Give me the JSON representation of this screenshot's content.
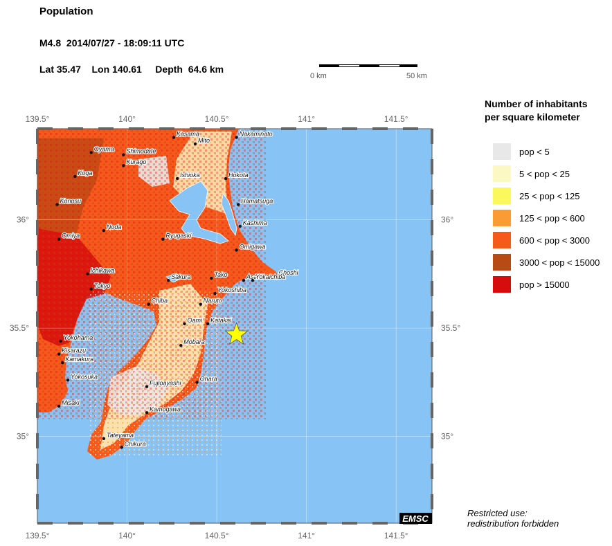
{
  "header": {
    "title": "Population",
    "event": "M4.8  2014/07/27 - 18:09:11 UTC",
    "location": "Lat 35.47    Lon 140.61     Depth  64.6 km"
  },
  "scalebar": {
    "start_label": "0 km",
    "end_label": "50 km"
  },
  "map": {
    "lon_ticks": [
      "139.5°",
      "140°",
      "140.5°",
      "141°",
      "141.5°"
    ],
    "lat_ticks": [
      "36°",
      "35.5°",
      "35°"
    ],
    "logo": "EMSC",
    "epicenter": {
      "lat": 35.47,
      "lon": 140.61
    },
    "colors": {
      "sea": "#87c4f5",
      "lake": "#87c4f5",
      "pop_lt5": "#e8e8e8",
      "pop_5_25": "#fbf8c4",
      "pop_25_125": "#fbf85e",
      "pop_125_600": "#fb9b33",
      "pop_600_3000": "#f55a1a",
      "pop_3000_15000": "#b84a13",
      "pop_gt15000": "#d60d0d",
      "epicenter_star": "#ffff00"
    },
    "cities": [
      {
        "name": "Kasama",
        "lon": 140.26,
        "lat": 36.38
      },
      {
        "name": "Nakaminato",
        "lon": 140.61,
        "lat": 36.38
      },
      {
        "name": "Mito",
        "lon": 140.38,
        "lat": 36.35
      },
      {
        "name": "Oyama",
        "lon": 139.8,
        "lat": 36.31
      },
      {
        "name": "Shimodate",
        "lon": 139.98,
        "lat": 36.3
      },
      {
        "name": "Kurago",
        "lon": 139.98,
        "lat": 36.25
      },
      {
        "name": "Koga",
        "lon": 139.71,
        "lat": 36.2
      },
      {
        "name": "Ishioka",
        "lon": 140.28,
        "lat": 36.19
      },
      {
        "name": "Hokota",
        "lon": 140.55,
        "lat": 36.19
      },
      {
        "name": "Konosu",
        "lon": 139.61,
        "lat": 36.07
      },
      {
        "name": "Hamatsuga",
        "lon": 140.62,
        "lat": 36.07
      },
      {
        "name": "Noda",
        "lon": 139.87,
        "lat": 35.95
      },
      {
        "name": "Kashima",
        "lon": 140.63,
        "lat": 35.97
      },
      {
        "name": "Omiya",
        "lon": 139.62,
        "lat": 35.91
      },
      {
        "name": "Ryugaski",
        "lon": 140.2,
        "lat": 35.91
      },
      {
        "name": "Omigawa",
        "lon": 140.61,
        "lat": 35.86
      },
      {
        "name": "Ichikawa",
        "lon": 139.78,
        "lat": 35.75
      },
      {
        "name": "Choshi",
        "lon": 140.83,
        "lat": 35.74
      },
      {
        "name": "Tako",
        "lon": 140.47,
        "lat": 35.73
      },
      {
        "name": "Asahi",
        "lon": 140.65,
        "lat": 35.72
      },
      {
        "name": "Yokaichiba",
        "lon": 140.7,
        "lat": 35.72
      },
      {
        "name": "Sakura",
        "lon": 140.23,
        "lat": 35.72
      },
      {
        "name": "Tokyo",
        "lon": 139.8,
        "lat": 35.68
      },
      {
        "name": "Yokoshiba",
        "lon": 140.49,
        "lat": 35.66
      },
      {
        "name": "Chiba",
        "lon": 140.12,
        "lat": 35.61
      },
      {
        "name": "Naruto",
        "lon": 140.41,
        "lat": 35.61
      },
      {
        "name": "Oami",
        "lon": 140.32,
        "lat": 35.52
      },
      {
        "name": "Katakai",
        "lon": 140.45,
        "lat": 35.52
      },
      {
        "name": "Yokohama",
        "lon": 139.63,
        "lat": 35.44
      },
      {
        "name": "Mobara",
        "lon": 140.3,
        "lat": 35.42
      },
      {
        "name": "Kisarazu",
        "lon": 139.62,
        "lat": 35.38
      },
      {
        "name": "Kamakura",
        "lon": 139.64,
        "lat": 35.34
      },
      {
        "name": "Yokosuka",
        "lon": 139.67,
        "lat": 35.26
      },
      {
        "name": "Ohara",
        "lon": 140.39,
        "lat": 35.25
      },
      {
        "name": "Fujioayashi",
        "lon": 140.11,
        "lat": 35.23
      },
      {
        "name": "Misaki",
        "lon": 139.62,
        "lat": 35.14
      },
      {
        "name": "Kamogawa",
        "lon": 140.11,
        "lat": 35.11
      },
      {
        "name": "Tateyama",
        "lon": 139.87,
        "lat": 34.99
      },
      {
        "name": "Chikura",
        "lon": 139.97,
        "lat": 34.95
      }
    ]
  },
  "legend": {
    "title": "Number of inhabitants\nper square kilometer",
    "items": [
      {
        "label": "pop < 5",
        "color": "#e8e8e8"
      },
      {
        "label": "5 < pop < 25",
        "color": "#fbf8c4"
      },
      {
        "label": "25 < pop < 125",
        "color": "#fbf85e"
      },
      {
        "label": "125 < pop < 600",
        "color": "#fb9b33"
      },
      {
        "label": "600 < pop < 3000",
        "color": "#f55a1a"
      },
      {
        "label": "3000 < pop < 15000",
        "color": "#b84a13"
      },
      {
        "label": "pop > 15000",
        "color": "#d60d0d"
      }
    ]
  },
  "footer": {
    "restricted": "Restricted use:\nredistribution forbidden"
  }
}
